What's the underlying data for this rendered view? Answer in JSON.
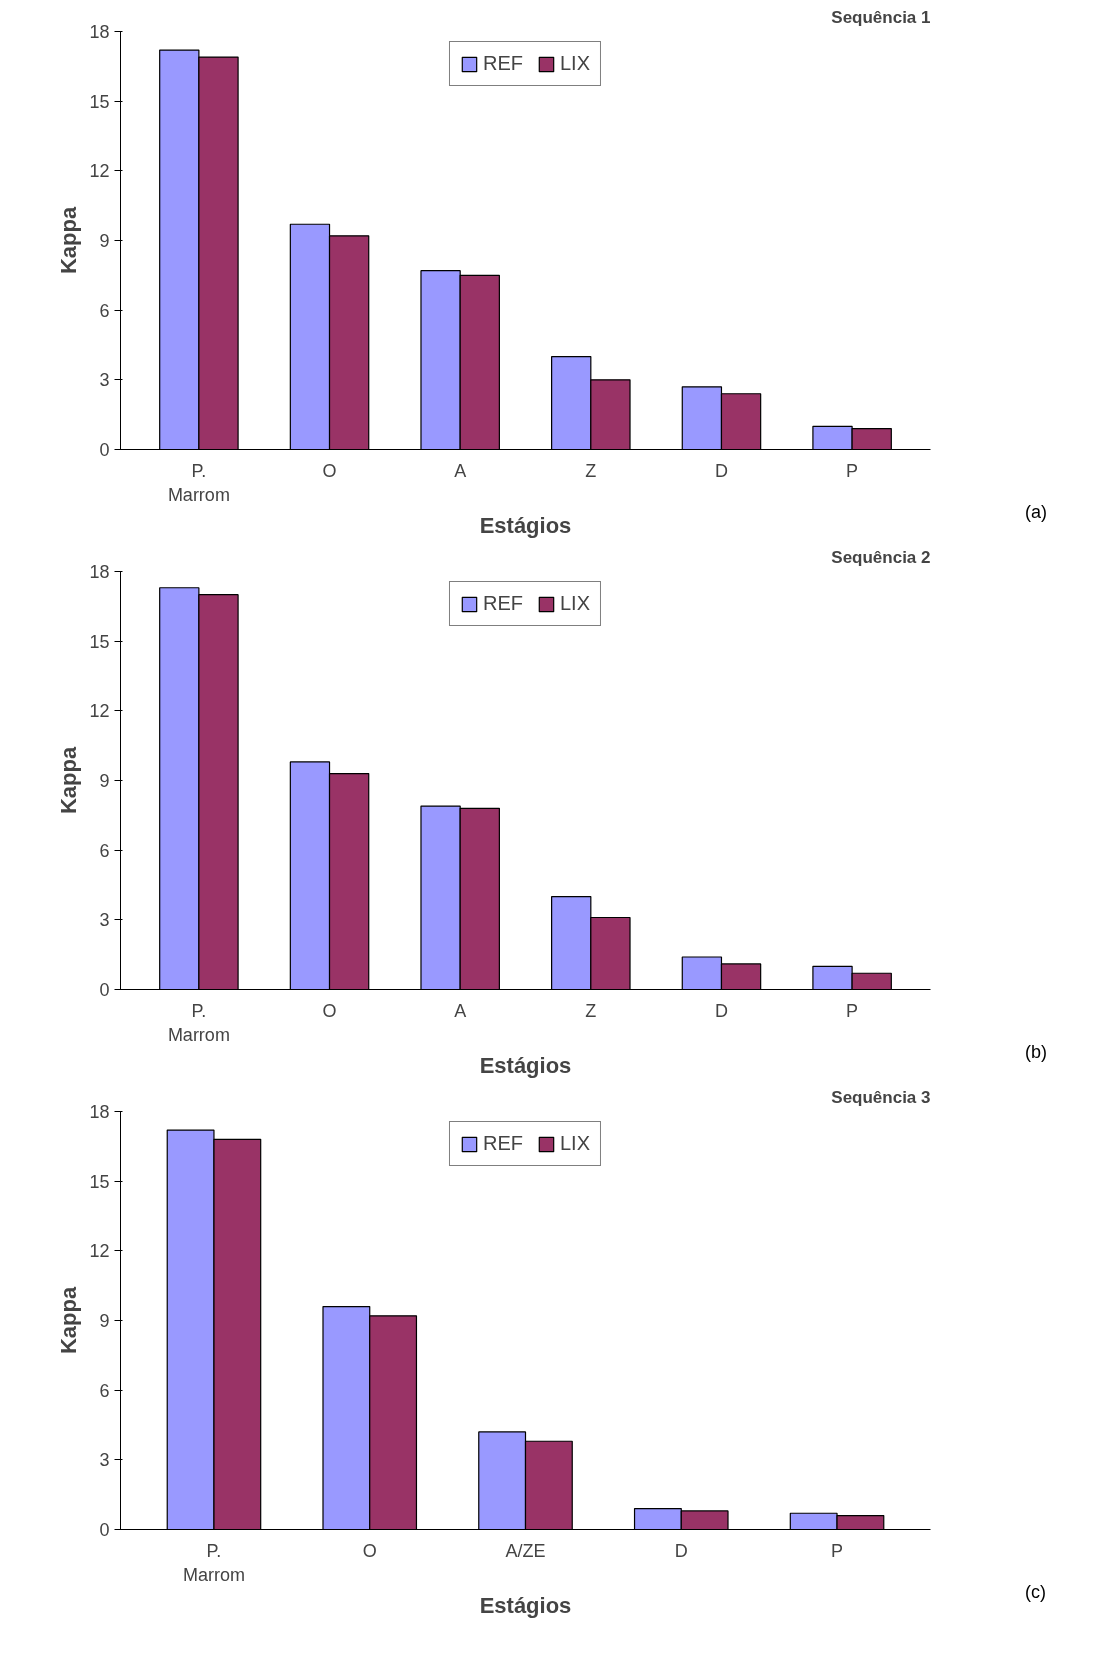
{
  "chart_data": [
    {
      "type": "bar",
      "title": "Sequência 1",
      "xlabel": "Estágios",
      "ylabel": "Kappa",
      "categories": [
        "P.\nMarrom",
        "O",
        "A",
        "Z",
        "D",
        "P"
      ],
      "series": [
        {
          "name": "REF",
          "color": "#9999ff",
          "values": [
            17.2,
            9.7,
            7.7,
            4.0,
            2.7,
            1.0
          ]
        },
        {
          "name": "LIX",
          "color": "#993366",
          "values": [
            16.9,
            9.2,
            7.5,
            3.0,
            2.4,
            0.9
          ]
        }
      ],
      "ylim": [
        0,
        18
      ],
      "yticks": [
        0,
        3,
        6,
        9,
        12,
        15,
        18
      ],
      "grid": false,
      "legend": "top",
      "annotations": [
        "(a)"
      ]
    },
    {
      "type": "bar",
      "title": "Sequência 2",
      "xlabel": "Estágios",
      "ylabel": "Kappa",
      "categories": [
        "P.\nMarrom",
        "O",
        "A",
        "Z",
        "D",
        "P"
      ],
      "series": [
        {
          "name": "REF",
          "color": "#9999ff",
          "values": [
            17.3,
            9.8,
            7.9,
            4.0,
            1.4,
            1.0
          ]
        },
        {
          "name": "LIX",
          "color": "#993366",
          "values": [
            17.0,
            9.3,
            7.8,
            3.1,
            1.1,
            0.7
          ]
        }
      ],
      "ylim": [
        0,
        18
      ],
      "yticks": [
        0,
        3,
        6,
        9,
        12,
        15,
        18
      ],
      "grid": false,
      "legend": "top",
      "annotations": [
        "(b)"
      ]
    },
    {
      "type": "bar",
      "title": "Sequência 3",
      "xlabel": "Estágios",
      "ylabel": "Kappa",
      "categories": [
        "P.\nMarrom",
        "O",
        "A/ZE",
        "D",
        "P"
      ],
      "series": [
        {
          "name": "REF",
          "color": "#9999ff",
          "values": [
            17.2,
            9.6,
            4.2,
            0.9,
            0.7
          ]
        },
        {
          "name": "LIX",
          "color": "#993366",
          "values": [
            16.8,
            9.2,
            3.8,
            0.8,
            0.6
          ]
        }
      ],
      "ylim": [
        0,
        18
      ],
      "yticks": [
        0,
        3,
        6,
        9,
        12,
        15,
        18
      ],
      "grid": false,
      "legend": "top",
      "annotations": [
        "(c)"
      ]
    }
  ]
}
